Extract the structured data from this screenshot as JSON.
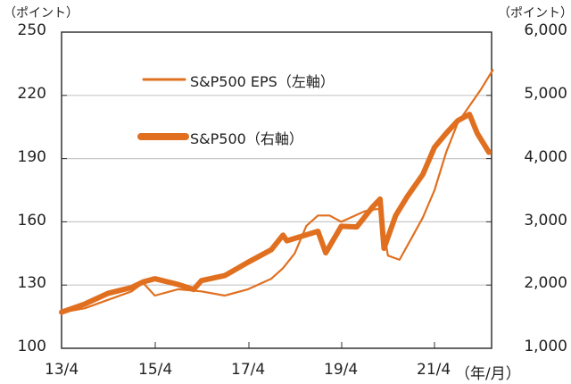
{
  "chart_data": {
    "type": "line",
    "title": "",
    "left_axis": {
      "unit": "（ポイント）",
      "ylim": [
        100,
        250
      ],
      "ticks": [
        "250",
        "220",
        "190",
        "160",
        "130",
        "100"
      ]
    },
    "right_axis": {
      "unit": "（ポイント）",
      "ylim": [
        1000,
        6000
      ],
      "ticks": [
        "6,000",
        "5,000",
        "4,000",
        "3,000",
        "2,000",
        "1,000"
      ]
    },
    "x_axis": {
      "unit": "（年/月）",
      "ticks": [
        "13/4",
        "15/4",
        "17/4",
        "19/4",
        "21/4"
      ]
    },
    "grid": true,
    "legend_position": "upper-left inside",
    "series": [
      {
        "name": "S&P500 EPS（左軸）",
        "axis": "left",
        "color": "#e07020",
        "style": "thin",
        "x": [
          "13/4",
          "13/10",
          "14/4",
          "14/10",
          "15/1",
          "15/4",
          "15/10",
          "16/4",
          "16/10",
          "17/4",
          "17/10",
          "18/1",
          "18/4",
          "18/7",
          "18/10",
          "19/1",
          "19/4",
          "19/10",
          "20/1",
          "20/2",
          "20/4",
          "20/7",
          "20/10",
          "21/1",
          "21/4",
          "21/7",
          "21/10",
          "22/1",
          "22/4",
          "22/7"
        ],
        "values": [
          117,
          119,
          123,
          127,
          131,
          125,
          128,
          127,
          125,
          128,
          133,
          138,
          145,
          158,
          163,
          163,
          160,
          165,
          166,
          166,
          144,
          142,
          152,
          162,
          175,
          193,
          207,
          215,
          223,
          232
        ]
      },
      {
        "name": "S&P500（右軸）",
        "axis": "right",
        "color": "#e07020",
        "style": "thick",
        "x": [
          "13/4",
          "13/10",
          "14/4",
          "14/10",
          "15/1",
          "15/4",
          "15/10",
          "16/2",
          "16/4",
          "16/10",
          "17/4",
          "17/10",
          "18/1",
          "18/2",
          "18/10",
          "18/12",
          "19/4",
          "19/8",
          "19/12",
          "20/2",
          "20/3",
          "20/6",
          "20/9",
          "21/1",
          "21/4",
          "21/7",
          "21/10",
          "22/1",
          "22/3",
          "22/6"
        ],
        "values": [
          1570,
          1700,
          1870,
          1960,
          2050,
          2100,
          2010,
          1930,
          2070,
          2150,
          2360,
          2560,
          2790,
          2700,
          2850,
          2510,
          2930,
          2920,
          3230,
          3360,
          2580,
          3100,
          3400,
          3750,
          4180,
          4400,
          4600,
          4700,
          4400,
          4100
        ]
      }
    ]
  }
}
